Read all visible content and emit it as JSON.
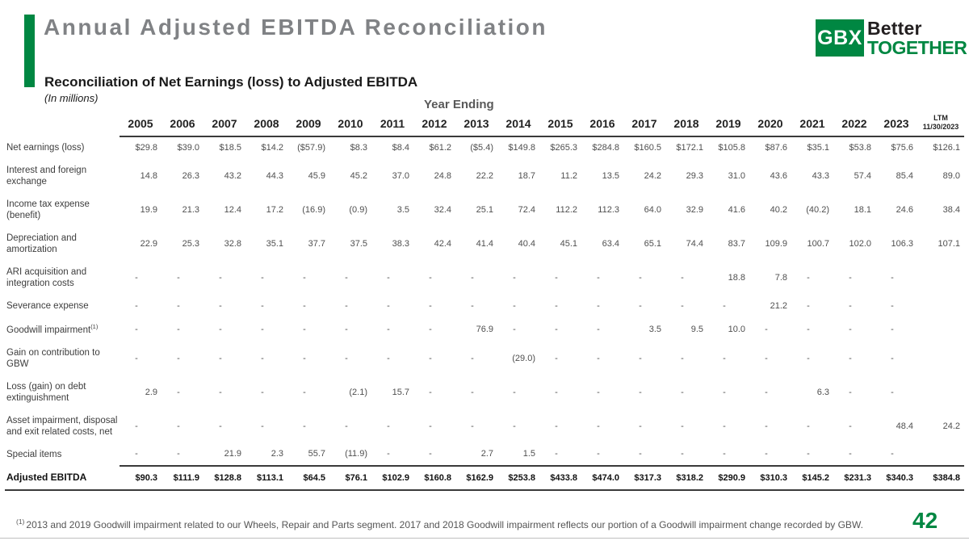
{
  "slide": {
    "title": "Annual Adjusted EBITDA Reconciliation",
    "subtitle": "Reconciliation of Net Earnings (loss) to Adjusted EBITDA",
    "units_note": "(In millions)",
    "page_number": "42",
    "footnote_marker": "(1)",
    "footnote_text": "2013 and 2019 Goodwill impairment related to our Wheels, Repair and Parts segment.  2017 and 2018 Goodwill impairment reflects our portion of a Goodwill impairment change recorded by GBW."
  },
  "logo": {
    "gbx": "GBX",
    "better": "Better",
    "together": "TOGETHER"
  },
  "colors": {
    "green": "#008742",
    "title_gray": "#808285"
  },
  "table": {
    "group_header": "Year Ending",
    "columns": [
      "2005",
      "2006",
      "2007",
      "2008",
      "2009",
      "2010",
      "2011",
      "2012",
      "2013",
      "2014",
      "2015",
      "2016",
      "2017",
      "2018",
      "2019",
      "2020",
      "2021",
      "2022",
      "2023"
    ],
    "ltm_column": {
      "line1": "LTM",
      "line2": "11/30/2023"
    },
    "rows": [
      {
        "label": "Net earnings (loss)",
        "values": [
          "$29.8",
          "$39.0",
          "$18.5",
          "$14.2",
          "($57.9)",
          "$8.3",
          "$8.4",
          "$61.2",
          "($5.4)",
          "$149.8",
          "$265.3",
          "$284.8",
          "$160.5",
          "$172.1",
          "$105.8",
          "$87.6",
          "$35.1",
          "$53.8",
          "$75.6",
          "$126.1"
        ]
      },
      {
        "label": "Interest and foreign exchange",
        "values": [
          "14.8",
          "26.3",
          "43.2",
          "44.3",
          "45.9",
          "45.2",
          "37.0",
          "24.8",
          "22.2",
          "18.7",
          "11.2",
          "13.5",
          "24.2",
          "29.3",
          "31.0",
          "43.6",
          "43.3",
          "57.4",
          "85.4",
          "89.0"
        ]
      },
      {
        "label": "Income tax expense (benefit)",
        "values": [
          "19.9",
          "21.3",
          "12.4",
          "17.2",
          "(16.9)",
          "(0.9)",
          "3.5",
          "32.4",
          "25.1",
          "72.4",
          "112.2",
          "112.3",
          "64.0",
          "32.9",
          "41.6",
          "40.2",
          "(40.2)",
          "18.1",
          "24.6",
          "38.4"
        ]
      },
      {
        "label": "Depreciation and amortization",
        "values": [
          "22.9",
          "25.3",
          "32.8",
          "35.1",
          "37.7",
          "37.5",
          "38.3",
          "42.4",
          "41.4",
          "40.4",
          "45.1",
          "63.4",
          "65.1",
          "74.4",
          "83.7",
          "109.9",
          "100.7",
          "102.0",
          "106.3",
          "107.1"
        ]
      },
      {
        "label": "ARI acquisition and integration costs",
        "values": [
          "-",
          "-",
          "-",
          "-",
          "-",
          "-",
          "-",
          "-",
          "-",
          "-",
          "-",
          "-",
          "-",
          "-",
          "18.8",
          "7.8",
          "-",
          "-",
          "-",
          ""
        ]
      },
      {
        "label": "Severance expense",
        "values": [
          "-",
          "-",
          "-",
          "-",
          "-",
          "-",
          "-",
          "-",
          "-",
          "-",
          "-",
          "-",
          "-",
          "-",
          "-",
          "21.2",
          "-",
          "-",
          "-",
          ""
        ]
      },
      {
        "label": "Goodwill impairment",
        "sup": "(1)",
        "values": [
          "-",
          "-",
          "-",
          "-",
          "-",
          "-",
          "-",
          "-",
          "76.9",
          "-",
          "-",
          "-",
          "3.5",
          "9.5",
          "10.0",
          "-",
          "-",
          "-",
          "-",
          ""
        ]
      },
      {
        "label": "Gain on contribution to GBW",
        "values": [
          "-",
          "-",
          "-",
          "-",
          "-",
          "-",
          "-",
          "-",
          "-",
          "(29.0)",
          "-",
          "-",
          "-",
          "-",
          "-",
          "-",
          "-",
          "-",
          "-",
          ""
        ]
      },
      {
        "label": "Loss (gain) on debt extinguishment",
        "values": [
          "2.9",
          "-",
          "-",
          "-",
          "-",
          "(2.1)",
          "15.7",
          "-",
          "-",
          "-",
          "-",
          "-",
          "-",
          "-",
          "-",
          "-",
          "6.3",
          "-",
          "-",
          ""
        ]
      },
      {
        "label": "Asset impairment, disposal and exit related costs, net",
        "values": [
          "-",
          "-",
          "-",
          "-",
          "-",
          "-",
          "-",
          "-",
          "-",
          "-",
          "-",
          "-",
          "-",
          "-",
          "-",
          "-",
          "-",
          "-",
          "48.4",
          "24.2"
        ]
      },
      {
        "label": "Special items",
        "values": [
          "-",
          "-",
          "21.9",
          "2.3",
          "55.7",
          "(11.9)",
          "-",
          "-",
          "2.7",
          "1.5",
          "-",
          "-",
          "-",
          "-",
          "-",
          "-",
          "-",
          "-",
          "-",
          ""
        ]
      }
    ],
    "total_row": {
      "label": "Adjusted EBITDA",
      "values": [
        "$90.3",
        "$111.9",
        "$128.8",
        "$113.1",
        "$64.5",
        "$76.1",
        "$102.9",
        "$160.8",
        "$162.9",
        "$253.8",
        "$433.8",
        "$474.0",
        "$317.3",
        "$318.2",
        "$290.9",
        "$310.3",
        "$145.2",
        "$231.3",
        "$340.3",
        "$384.8"
      ]
    }
  }
}
